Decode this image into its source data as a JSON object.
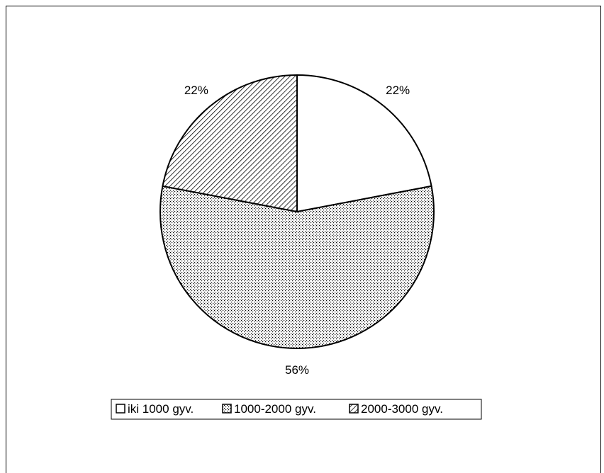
{
  "chart_data": {
    "type": "pie",
    "title": "",
    "slices": [
      {
        "name": "iki 1000 gyv.",
        "value": 22,
        "label": "22%",
        "pattern": "none"
      },
      {
        "name": "1000-2000 gyv.",
        "value": 56,
        "label": "56%",
        "pattern": "dots"
      },
      {
        "name": "2000-3000 gyv.",
        "value": 22,
        "label": "22%",
        "pattern": "hatch"
      }
    ],
    "start_angle_deg": 0,
    "direction": "clockwise",
    "legend_position": "bottom",
    "colors": {
      "stroke": "#000000",
      "fill": "#ffffff"
    }
  }
}
